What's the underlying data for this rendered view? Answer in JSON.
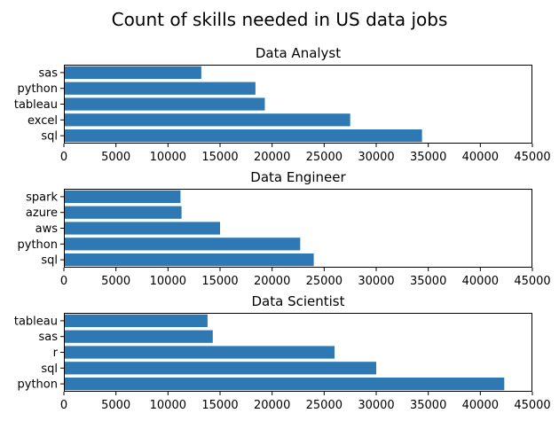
{
  "figure": {
    "title": "Count of skills needed in US data jobs",
    "bar_color": "#2e78b4"
  },
  "chart_data": [
    {
      "type": "bar",
      "orientation": "horizontal",
      "title": "Data Analyst",
      "categories": [
        "sas",
        "python",
        "tableau",
        "excel",
        "sql"
      ],
      "values": [
        13200,
        18400,
        19300,
        27500,
        34400
      ],
      "xlim": [
        0,
        45000
      ],
      "xticks": [
        "0",
        "5000",
        "10000",
        "15000",
        "20000",
        "25000",
        "30000",
        "35000",
        "40000",
        "45000"
      ],
      "xlabel": "",
      "ylabel": "",
      "grid": false
    },
    {
      "type": "bar",
      "orientation": "horizontal",
      "title": "Data Engineer",
      "categories": [
        "spark",
        "azure",
        "aws",
        "python",
        "sql"
      ],
      "values": [
        11200,
        11300,
        15000,
        22700,
        24000
      ],
      "xlim": [
        0,
        45000
      ],
      "xticks": [
        "0",
        "5000",
        "10000",
        "15000",
        "20000",
        "25000",
        "30000",
        "35000",
        "40000",
        "45000"
      ],
      "xlabel": "",
      "ylabel": "",
      "grid": false
    },
    {
      "type": "bar",
      "orientation": "horizontal",
      "title": "Data Scientist",
      "categories": [
        "tableau",
        "sas",
        "r",
        "sql",
        "python"
      ],
      "values": [
        13800,
        14300,
        26000,
        30000,
        42300
      ],
      "xlim": [
        0,
        45000
      ],
      "xticks": [
        "0",
        "5000",
        "10000",
        "15000",
        "20000",
        "25000",
        "30000",
        "35000",
        "40000",
        "45000"
      ],
      "xlabel": "",
      "ylabel": "",
      "grid": false
    }
  ]
}
